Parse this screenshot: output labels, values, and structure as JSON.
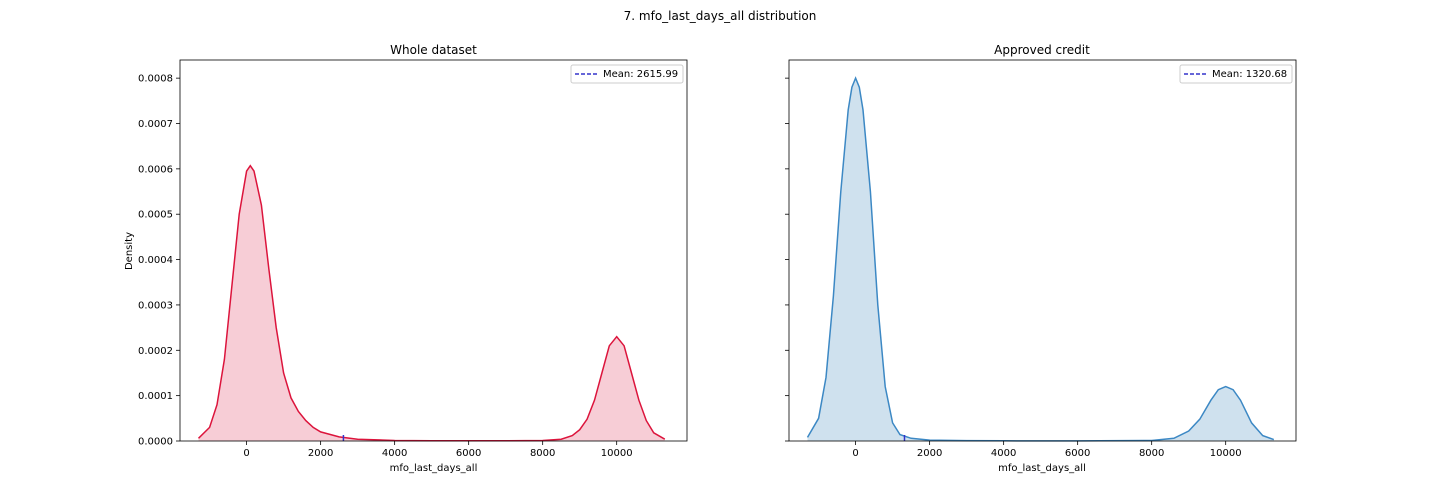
{
  "figure_title": "7. mfo_last_days_all distribution",
  "chart_data": [
    {
      "type": "area",
      "title": "Whole dataset",
      "xlabel": "mfo_last_days_all",
      "ylabel": "Density",
      "xlim": [
        -1800,
        11900
      ],
      "ylim": [
        0,
        0.00084
      ],
      "xticks": [
        0,
        2000,
        4000,
        6000,
        8000,
        10000
      ],
      "xtick_labels": [
        "0",
        "2000",
        "4000",
        "6000",
        "8000",
        "10000"
      ],
      "yticks": [
        0,
        0.0001,
        0.0002,
        0.0003,
        0.0004,
        0.0005,
        0.0006,
        0.0007,
        0.0008
      ],
      "ytick_labels": [
        "0.0000",
        "0.0001",
        "0.0002",
        "0.0003",
        "0.0004",
        "0.0005",
        "0.0006",
        "0.0007",
        "0.0008"
      ],
      "grid": false,
      "legend_position": "top-right",
      "line_color": "#dc143c",
      "fill_color": "#f7cdd6",
      "mean_line_color": "#3333cc",
      "legend_label": "Mean: 2615.99",
      "mean": 2615.99,
      "series": [
        {
          "x": [
            -1300,
            -1000,
            -800,
            -600,
            -400,
            -200,
            0,
            100,
            200,
            400,
            600,
            800,
            1000,
            1200,
            1400,
            1600,
            1800,
            2000,
            2500,
            3000,
            4000,
            5000,
            6000,
            7000,
            8000,
            8500,
            8800,
            9000,
            9200,
            9400,
            9600,
            9800,
            10000,
            10200,
            10400,
            10600,
            10800,
            11000,
            11300
          ],
          "y": [
            6e-06,
            3e-05,
            8e-05,
            0.00018,
            0.00034,
            0.0005,
            0.000595,
            0.000607,
            0.000595,
            0.00052,
            0.00038,
            0.00025,
            0.00015,
            9.5e-05,
            6.5e-05,
            4.5e-05,
            3e-05,
            2e-05,
            9e-06,
            4e-06,
            1e-06,
            5e-07,
            4e-07,
            4e-07,
            1e-06,
            4e-06,
            1.2e-05,
            2.5e-05,
            4.8e-05,
            9e-05,
            0.00015,
            0.00021,
            0.00023,
            0.00021,
            0.00015,
            9e-05,
            4.5e-05,
            1.8e-05,
            4e-06
          ]
        }
      ]
    },
    {
      "type": "area",
      "title": "Approved credit",
      "xlabel": "mfo_last_days_all",
      "ylabel": "",
      "xlim": [
        -1800,
        11900
      ],
      "ylim": [
        0,
        0.00084
      ],
      "xticks": [
        0,
        2000,
        4000,
        6000,
        8000,
        10000
      ],
      "xtick_labels": [
        "0",
        "2000",
        "4000",
        "6000",
        "8000",
        "10000"
      ],
      "yticks": [
        0,
        0.0001,
        0.0002,
        0.0003,
        0.0004,
        0.0005,
        0.0006,
        0.0007,
        0.0008
      ],
      "ytick_labels": [],
      "grid": false,
      "legend_position": "top-right",
      "line_color": "#3c88c4",
      "fill_color": "#cfe1ee",
      "mean_line_color": "#3333cc",
      "legend_label": "Mean: 1320.68",
      "mean": 1320.68,
      "series": [
        {
          "x": [
            -1300,
            -1000,
            -800,
            -600,
            -400,
            -200,
            -100,
            0,
            100,
            200,
            400,
            600,
            800,
            1000,
            1200,
            1500,
            2000,
            3000,
            4000,
            6000,
            8000,
            8600,
            9000,
            9300,
            9600,
            9800,
            10000,
            10200,
            10400,
            10700,
            11000,
            11300
          ],
          "y": [
            8e-06,
            5e-05,
            0.00014,
            0.00032,
            0.00055,
            0.00073,
            0.00078,
            0.0008,
            0.00078,
            0.00073,
            0.00055,
            0.0003,
            0.00012,
            4e-05,
            1.4e-05,
            6e-06,
            2e-06,
            8e-07,
            4e-07,
            3e-07,
            1e-06,
            6e-06,
            2.2e-05,
            4.8e-05,
            9e-05,
            0.000113,
            0.00012,
            0.000113,
            9e-05,
            4e-05,
            1.2e-05,
            3e-06
          ]
        }
      ]
    }
  ]
}
